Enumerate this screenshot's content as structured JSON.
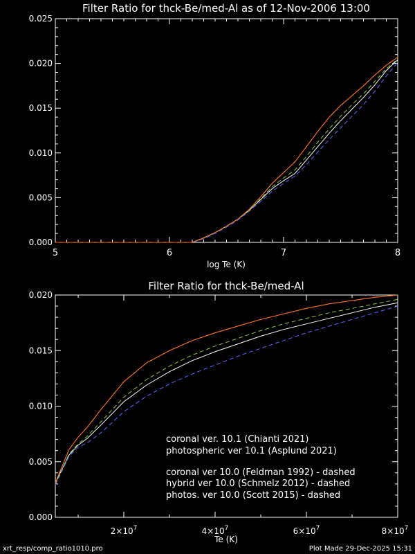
{
  "footer": {
    "left": "xrt_resp/comp_ratio1010.pro",
    "right": "Plot Made 29-Dec-2025 15:31"
  },
  "legend": [
    {
      "label": "coronal ver. 10.1 (Chianti 2021)",
      "color": "#ffffff"
    },
    {
      "label": "photospheric ver 10.1 (Asplund 2021)",
      "color": "#ffa030"
    },
    {
      "label": "coronal ver 10.0 (Feldman 1992) - dashed",
      "color": "#5a6aff"
    },
    {
      "label": "hybrid ver 10.0 (Schmelz 2012) - dashed",
      "color": "#8ccc3a"
    },
    {
      "label": "photos. ver 10.0 (Scott 2015) - dashed",
      "color": "#ff5a20"
    }
  ],
  "chart_data": [
    {
      "type": "line",
      "title": "Filter Ratio for thck-Be/med-Al as of 12-Nov-2006 13:00",
      "xlabel": "log Te (K)",
      "ylabel": "",
      "xlim": [
        5,
        8
      ],
      "ylim": [
        0,
        0.025
      ],
      "xticks": [
        "5",
        "6",
        "7",
        "8"
      ],
      "yticks": [
        "0.000",
        "0.005",
        "0.010",
        "0.015",
        "0.020",
        "0.025"
      ],
      "series": [
        {
          "name": "coronal ver. 10.1 (Chianti 2021)",
          "color": "#ffffff",
          "dashed": false,
          "x": [
            6.1,
            6.2,
            6.3,
            6.4,
            6.5,
            6.6,
            6.7,
            6.8,
            6.9,
            7.0,
            7.1,
            7.2,
            7.3,
            7.4,
            7.5,
            7.6,
            7.7,
            7.8,
            7.9,
            8.0
          ],
          "y": [
            0,
            0,
            0.0005,
            0.0011,
            0.0018,
            0.0026,
            0.0036,
            0.0048,
            0.006,
            0.0069,
            0.0077,
            0.0092,
            0.0107,
            0.0122,
            0.0136,
            0.0149,
            0.0162,
            0.0176,
            0.0192,
            0.0204
          ]
        },
        {
          "name": "photospheric ver 10.1 (Asplund 2021)",
          "color": "#ffa030",
          "dashed": false,
          "x": [
            6.1,
            6.2,
            6.3,
            6.4,
            6.5,
            6.6,
            6.7,
            6.8,
            6.9,
            7.0,
            7.1,
            7.2,
            7.3,
            7.4,
            7.5,
            7.6,
            7.7,
            7.8,
            7.9,
            8.0
          ],
          "y": [
            0,
            0,
            0.0005,
            0.0011,
            0.0018,
            0.0026,
            0.0037,
            0.0051,
            0.0066,
            0.0078,
            0.009,
            0.0107,
            0.0124,
            0.014,
            0.0153,
            0.0164,
            0.0175,
            0.0187,
            0.0198,
            0.0207
          ]
        },
        {
          "name": "coronal ver 10.0 (Feldman 1992) - dashed",
          "color": "#5a6aff",
          "dashed": true,
          "x": [
            6.1,
            6.2,
            6.3,
            6.4,
            6.5,
            6.6,
            6.7,
            6.8,
            6.9,
            7.0,
            7.1,
            7.2,
            7.3,
            7.4,
            7.5,
            7.6,
            7.7,
            7.8,
            7.9,
            8.0
          ],
          "y": [
            0,
            0,
            0.0004,
            0.001,
            0.0017,
            0.0025,
            0.0035,
            0.0046,
            0.0057,
            0.0066,
            0.0074,
            0.0087,
            0.0101,
            0.0115,
            0.0128,
            0.0141,
            0.0154,
            0.0169,
            0.0186,
            0.0201
          ]
        },
        {
          "name": "hybrid ver 10.0 (Schmelz 2012) - dashed",
          "color": "#8ccc3a",
          "dashed": true,
          "x": [
            6.1,
            6.2,
            6.3,
            6.4,
            6.5,
            6.6,
            6.7,
            6.8,
            6.9,
            7.0,
            7.1,
            7.2,
            7.3,
            7.4,
            7.5,
            7.6,
            7.7,
            7.8,
            7.9,
            8.0
          ],
          "y": [
            0,
            0,
            0.0005,
            0.0011,
            0.0018,
            0.0026,
            0.0036,
            0.0049,
            0.0062,
            0.0072,
            0.0081,
            0.0096,
            0.0112,
            0.0127,
            0.0141,
            0.0154,
            0.0166,
            0.018,
            0.0194,
            0.0205
          ]
        },
        {
          "name": "photos. ver 10.0 (Scott 2015) - dashed",
          "color": "#ff5a20",
          "dashed": true,
          "x": [
            6.1,
            6.2,
            6.3,
            6.4,
            6.5,
            6.6,
            6.7,
            6.8,
            6.9,
            7.0,
            7.1,
            7.2,
            7.3,
            7.4,
            7.5,
            7.6,
            7.7,
            7.8,
            7.9,
            8.0
          ],
          "y": [
            0,
            0,
            0.0005,
            0.0011,
            0.0018,
            0.0026,
            0.0037,
            0.0051,
            0.0066,
            0.0078,
            0.009,
            0.0107,
            0.0124,
            0.014,
            0.0153,
            0.0164,
            0.0175,
            0.0187,
            0.0198,
            0.0207
          ]
        }
      ]
    },
    {
      "type": "line",
      "title": "Filter Ratio for thck-Be/med-Al",
      "xlabel": "Te (K)",
      "ylabel": "",
      "xlim": [
        5000000,
        80000000
      ],
      "ylim": [
        0,
        0.02
      ],
      "xticks": [
        {
          "value": 20000000,
          "mant": "2×10",
          "exp": "7"
        },
        {
          "value": 40000000,
          "mant": "4×10",
          "exp": "7"
        },
        {
          "value": 60000000,
          "mant": "6×10",
          "exp": "7"
        },
        {
          "value": 80000000,
          "mant": "8×10",
          "exp": "7"
        }
      ],
      "yticks": [
        "0.000",
        "0.005",
        "0.010",
        "0.015",
        "0.020"
      ],
      "series": [
        {
          "name": "coronal ver. 10.1 (Chianti 2021)",
          "color": "#ffffff",
          "dashed": false,
          "x": [
            5000000,
            8000000,
            10000000,
            12000000,
            15000000,
            20000000,
            25000000,
            30000000,
            35000000,
            40000000,
            45000000,
            50000000,
            55000000,
            60000000,
            65000000,
            70000000,
            75000000,
            80000000
          ],
          "y": [
            0.0031,
            0.0056,
            0.0065,
            0.0071,
            0.0083,
            0.0104,
            0.0119,
            0.0131,
            0.0141,
            0.0149,
            0.0156,
            0.0163,
            0.0169,
            0.0174,
            0.0179,
            0.0184,
            0.0189,
            0.0193
          ]
        },
        {
          "name": "photospheric ver 10.1 (Asplund 2021)",
          "color": "#ffa030",
          "dashed": false,
          "x": [
            5000000,
            8000000,
            10000000,
            12000000,
            15000000,
            20000000,
            25000000,
            30000000,
            35000000,
            40000000,
            45000000,
            50000000,
            55000000,
            60000000,
            65000000,
            70000000,
            75000000,
            80000000
          ],
          "y": [
            0.0031,
            0.0061,
            0.0072,
            0.0081,
            0.0097,
            0.0122,
            0.0139,
            0.015,
            0.0159,
            0.0166,
            0.0172,
            0.0178,
            0.0183,
            0.0188,
            0.0192,
            0.0195,
            0.0198,
            0.02
          ]
        },
        {
          "name": "coronal ver 10.0 (Feldman 1992) - dashed",
          "color": "#5a6aff",
          "dashed": true,
          "x": [
            5000000,
            8000000,
            10000000,
            12000000,
            15000000,
            20000000,
            25000000,
            30000000,
            35000000,
            40000000,
            45000000,
            50000000,
            55000000,
            60000000,
            65000000,
            70000000,
            75000000,
            80000000
          ],
          "y": [
            0.0029,
            0.0055,
            0.0063,
            0.0067,
            0.0076,
            0.0095,
            0.0109,
            0.012,
            0.0129,
            0.0137,
            0.0145,
            0.0152,
            0.0159,
            0.0166,
            0.0172,
            0.0178,
            0.0184,
            0.019
          ]
        },
        {
          "name": "hybrid ver 10.0 (Schmelz 2012) - dashed",
          "color": "#8ccc3a",
          "dashed": true,
          "x": [
            5000000,
            8000000,
            10000000,
            12000000,
            15000000,
            20000000,
            25000000,
            30000000,
            35000000,
            40000000,
            45000000,
            50000000,
            55000000,
            60000000,
            65000000,
            70000000,
            75000000,
            80000000
          ],
          "y": [
            0.003,
            0.0057,
            0.0066,
            0.0073,
            0.0086,
            0.0108,
            0.0124,
            0.0136,
            0.0146,
            0.0154,
            0.0161,
            0.0168,
            0.0174,
            0.0179,
            0.0184,
            0.0188,
            0.0192,
            0.0196
          ]
        },
        {
          "name": "photos. ver 10.0 (Scott 2015) - dashed",
          "color": "#ff5a20",
          "dashed": true,
          "x": [
            5000000,
            8000000,
            10000000,
            12000000,
            15000000,
            20000000,
            25000000,
            30000000,
            35000000,
            40000000,
            45000000,
            50000000,
            55000000,
            60000000,
            65000000,
            70000000,
            75000000,
            80000000
          ],
          "y": [
            0.0031,
            0.0061,
            0.0072,
            0.0081,
            0.0097,
            0.0122,
            0.0139,
            0.015,
            0.0159,
            0.0166,
            0.0172,
            0.0178,
            0.0183,
            0.0188,
            0.0192,
            0.0195,
            0.0198,
            0.02
          ]
        }
      ]
    }
  ]
}
